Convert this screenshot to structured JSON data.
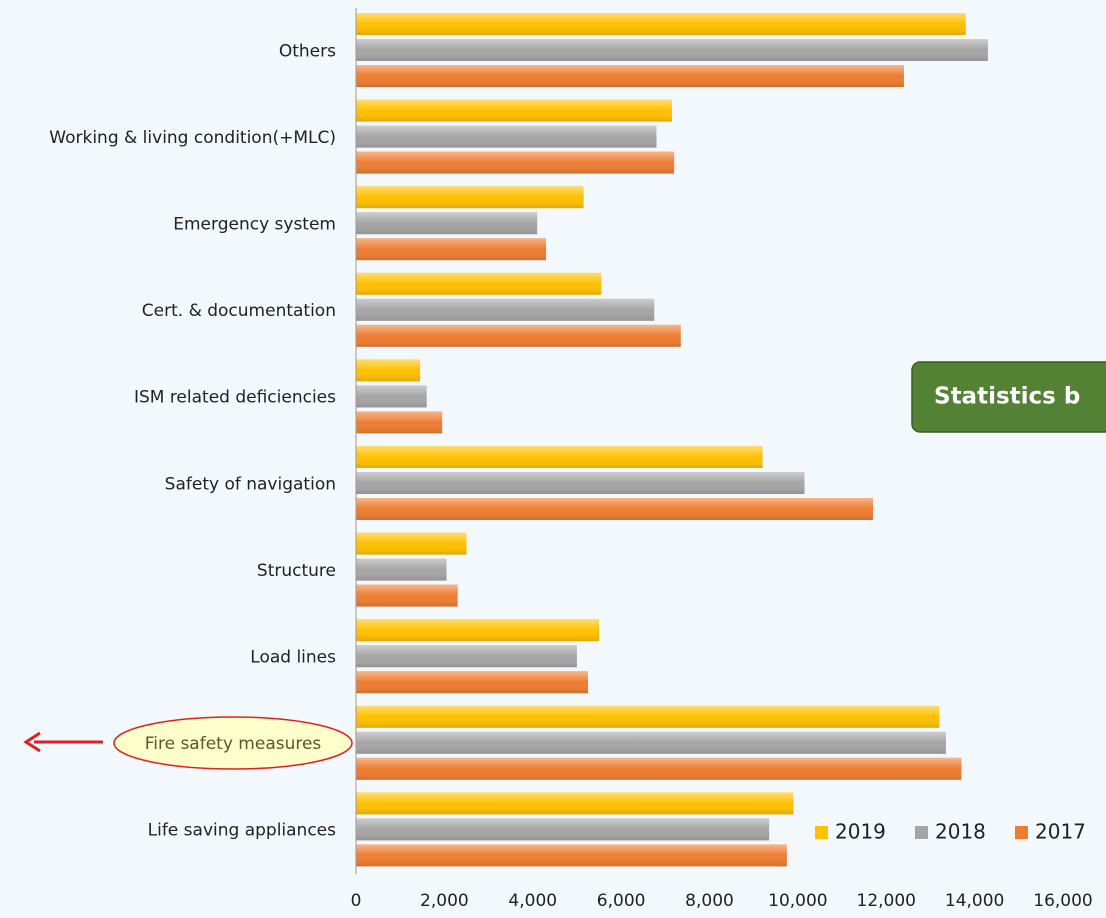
{
  "chart_data": {
    "type": "hbar",
    "categories": [
      "Others",
      "Working & living condition(+MLC)",
      "Emergency system",
      "Cert. & documentation",
      "ISM related deficiencies",
      "Safety of navigation",
      "Structure",
      "Load lines",
      "Fire safety measures",
      "Life saving appliances"
    ],
    "series": [
      {
        "name": "2019",
        "color": "#ffc000",
        "values": [
          13800,
          7150,
          5150,
          5550,
          1450,
          9200,
          2500,
          5500,
          13200,
          9900
        ]
      },
      {
        "name": "2018",
        "color": "#a5a5a5",
        "values": [
          14300,
          6800,
          4100,
          6750,
          1600,
          10150,
          2050,
          5000,
          13350,
          9350
        ]
      },
      {
        "name": "2017",
        "color": "#ed7d31",
        "values": [
          12400,
          7200,
          4300,
          7350,
          1950,
          11700,
          2300,
          5250,
          13700,
          9750
        ]
      }
    ],
    "xlim": [
      0,
      16000
    ],
    "xticks": [
      0,
      {
        "value": 2000,
        "label": "2,000"
      },
      {
        "value": 4000,
        "label": "4,000"
      },
      {
        "value": 6000,
        "label": "6,000"
      },
      {
        "value": 8000,
        "label": "8,000"
      },
      {
        "value": 10000,
        "label": "10,000"
      },
      {
        "value": 12000,
        "label": "12,000"
      },
      {
        "value": 14000,
        "label": "14,000"
      },
      {
        "value": 16000,
        "label": "16,000"
      }
    ],
    "annotation": "Statistics b",
    "legend": "bottom-right"
  }
}
